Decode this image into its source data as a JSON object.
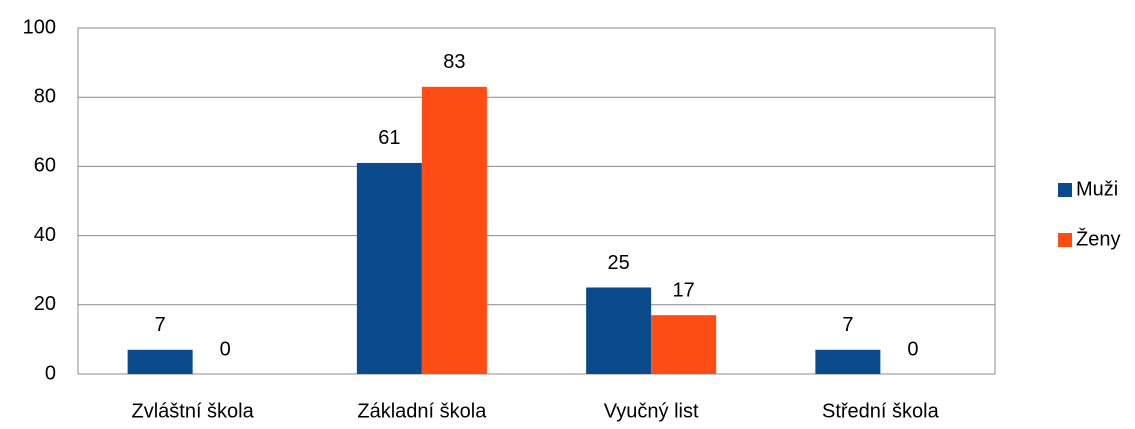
{
  "chart_data": {
    "type": "bar",
    "categories": [
      "Zvláštní škola",
      "Základní škola",
      "Vyučný list",
      "Střední škola"
    ],
    "series": [
      {
        "name": "Muži",
        "color": "#0b4a8b",
        "values": [
          7,
          61,
          25,
          7
        ]
      },
      {
        "name": "Ženy",
        "color": "#fd4d14",
        "values": [
          0,
          83,
          17,
          0
        ]
      }
    ],
    "ylim": [
      0,
      100
    ],
    "yticks": [
      0,
      20,
      40,
      60,
      80,
      100
    ],
    "grid": true,
    "legend": "right"
  }
}
